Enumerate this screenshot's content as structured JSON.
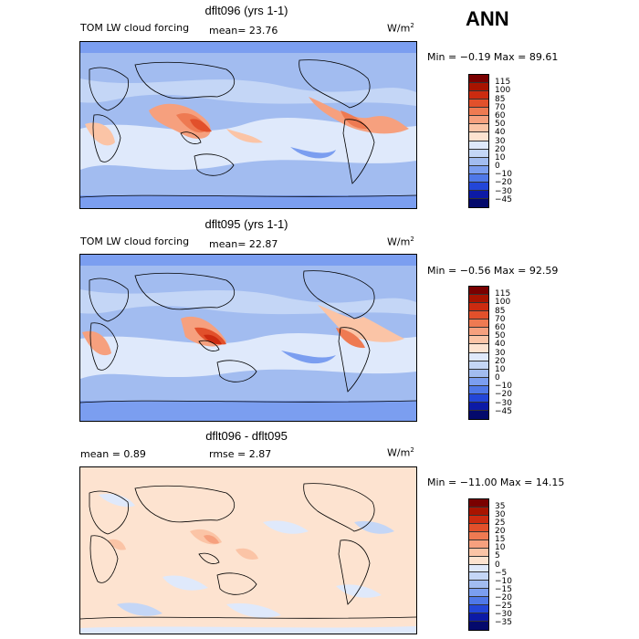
{
  "season": "ANN",
  "panels": [
    {
      "title": "dflt096 (yrs 1-1)",
      "field": "TOM LW cloud forcing",
      "stat1": "mean=  23.76",
      "stat2": "",
      "units": "W/m",
      "units_sup": "2",
      "minmax": "Min =  −0.19  Max =  89.61",
      "palette": "abs",
      "levels": [
        "115",
        "100",
        "85",
        "70",
        "60",
        "50",
        "40",
        "30",
        "20",
        "10",
        "0",
        "−10",
        "−20",
        "−30",
        "−45"
      ]
    },
    {
      "title": "dflt095 (yrs 1-1)",
      "field": "TOM LW cloud forcing",
      "stat1": "mean=  22.87",
      "stat2": "",
      "units": "W/m",
      "units_sup": "2",
      "minmax": "Min =  −0.56  Max =  92.59",
      "palette": "abs",
      "levels": [
        "115",
        "100",
        "85",
        "70",
        "60",
        "50",
        "40",
        "30",
        "20",
        "10",
        "0",
        "−10",
        "−20",
        "−30",
        "−45"
      ]
    },
    {
      "title": "dflt096 - dflt095",
      "field": "mean =   0.89",
      "stat1": "rmse =   2.87",
      "stat2": "",
      "units": "W/m",
      "units_sup": "2",
      "minmax": "Min = −11.00  Max =  14.15",
      "palette": "diff",
      "levels": [
        "35",
        "30",
        "25",
        "20",
        "15",
        "10",
        "5",
        "0",
        "−5",
        "−10",
        "−15",
        "−20",
        "−25",
        "−30",
        "−35"
      ]
    }
  ],
  "colors": {
    "abs": [
      "#7a0000",
      "#a81400",
      "#cc2b10",
      "#e2502b",
      "#ee7a52",
      "#f6a07e",
      "#fbc4a6",
      "#fde3d0",
      "#dfe9fb",
      "#c4d6f6",
      "#a2bcf0",
      "#7b9ef0",
      "#4f78e8",
      "#2346d8",
      "#0c1aa6",
      "#040a6c"
    ],
    "diff": [
      "#7a0000",
      "#a81400",
      "#cc2b10",
      "#e2502b",
      "#ee7a52",
      "#f6a07e",
      "#fbc4a6",
      "#fde3d0",
      "#dfe9fb",
      "#c4d6f6",
      "#a2bcf0",
      "#7b9ef0",
      "#4f78e8",
      "#2346d8",
      "#0c1aa6",
      "#040a6c"
    ]
  }
}
